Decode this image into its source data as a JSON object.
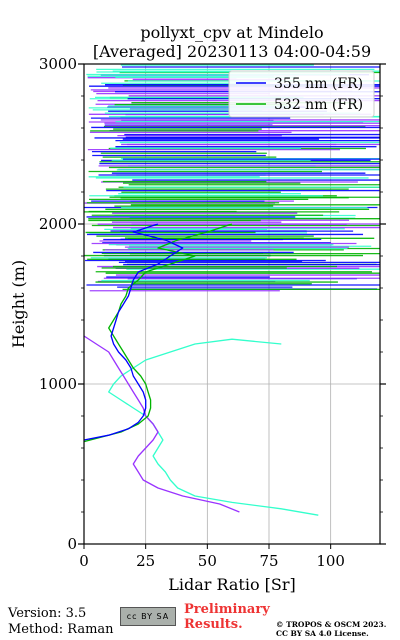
{
  "chart_data": {
    "type": "line",
    "title_line1": "pollyxt_cpv at Mindelo",
    "title_line2": "[Averaged] 20230113 04:00-04:59",
    "xlabel": "Lidar Ratio [Sr]",
    "ylabel": "Height (m)",
    "xlim": [
      0,
      120
    ],
    "ylim": [
      0,
      3000
    ],
    "xticks": [
      0,
      25,
      50,
      75,
      100
    ],
    "yticks": [
      0,
      1000,
      2000,
      3000
    ],
    "grid": true,
    "legend_position": "top-right",
    "series": [
      {
        "name": "355 nm (FR)",
        "color": "#0000ff",
        "points": [
          [
            0,
            650
          ],
          [
            10,
            680
          ],
          [
            18,
            720
          ],
          [
            22,
            760
          ],
          [
            24,
            800
          ],
          [
            25,
            850
          ],
          [
            25,
            900
          ],
          [
            24,
            950
          ],
          [
            22,
            1000
          ],
          [
            20,
            1050
          ],
          [
            19,
            1100
          ],
          [
            17,
            1150
          ],
          [
            14,
            1200
          ],
          [
            12,
            1250
          ],
          [
            11,
            1300
          ],
          [
            12,
            1350
          ],
          [
            13,
            1400
          ],
          [
            14,
            1450
          ],
          [
            16,
            1500
          ],
          [
            18,
            1550
          ],
          [
            19,
            1600
          ],
          [
            20,
            1650
          ],
          [
            22,
            1700
          ],
          [
            30,
            1750
          ],
          [
            35,
            1800
          ],
          [
            40,
            1850
          ],
          [
            33,
            1900
          ],
          [
            20,
            1950
          ],
          [
            30,
            2000
          ]
        ]
      },
      {
        "name": "532 nm (FR)",
        "color": "#00b400",
        "points": [
          [
            0,
            640
          ],
          [
            15,
            700
          ],
          [
            22,
            750
          ],
          [
            26,
            800
          ],
          [
            27,
            850
          ],
          [
            27,
            900
          ],
          [
            26,
            950
          ],
          [
            25,
            1000
          ],
          [
            23,
            1050
          ],
          [
            20,
            1100
          ],
          [
            18,
            1150
          ],
          [
            16,
            1200
          ],
          [
            14,
            1250
          ],
          [
            12,
            1300
          ],
          [
            10,
            1350
          ],
          [
            12,
            1400
          ],
          [
            14,
            1450
          ],
          [
            15,
            1500
          ],
          [
            17,
            1550
          ],
          [
            18,
            1600
          ],
          [
            22,
            1650
          ],
          [
            25,
            1700
          ],
          [
            35,
            1750
          ],
          [
            45,
            1800
          ],
          [
            30,
            1850
          ],
          [
            38,
            1900
          ],
          [
            50,
            1950
          ],
          [
            60,
            2000
          ]
        ]
      },
      {
        "name": "",
        "color": "#9933ff",
        "points": [
          [
            63,
            200
          ],
          [
            55,
            250
          ],
          [
            40,
            300
          ],
          [
            30,
            350
          ],
          [
            24,
            400
          ],
          [
            22,
            450
          ],
          [
            20,
            500
          ],
          [
            22,
            550
          ],
          [
            25,
            600
          ],
          [
            28,
            650
          ],
          [
            30,
            700
          ],
          [
            28,
            750
          ],
          [
            25,
            800
          ],
          [
            24,
            850
          ],
          [
            22,
            900
          ],
          [
            20,
            950
          ],
          [
            18,
            1000
          ],
          [
            16,
            1050
          ],
          [
            14,
            1100
          ],
          [
            12,
            1150
          ],
          [
            10,
            1200
          ],
          [
            5,
            1250
          ],
          [
            0,
            1300
          ]
        ]
      },
      {
        "name": "",
        "color": "#33ffcc",
        "points": [
          [
            95,
            180
          ],
          [
            80,
            220
          ],
          [
            60,
            260
          ],
          [
            45,
            300
          ],
          [
            38,
            350
          ],
          [
            35,
            400
          ],
          [
            33,
            450
          ],
          [
            30,
            500
          ],
          [
            28,
            550
          ],
          [
            30,
            600
          ],
          [
            32,
            650
          ],
          [
            30,
            700
          ],
          [
            28,
            750
          ],
          [
            25,
            800
          ],
          [
            20,
            850
          ],
          [
            15,
            900
          ],
          [
            10,
            950
          ],
          [
            12,
            1000
          ],
          [
            15,
            1050
          ],
          [
            20,
            1100
          ],
          [
            25,
            1150
          ],
          [
            35,
            1200
          ],
          [
            45,
            1250
          ],
          [
            60,
            1280
          ],
          [
            80,
            1250
          ]
        ]
      }
    ]
  },
  "footer": {
    "version": "Version: 3.5",
    "method": "Method: Raman",
    "license_badge": "cc BY SA",
    "preliminary_line1": "Preliminary",
    "preliminary_line2": "Results.",
    "copyright_line1": "© TROPOS & OSCM 2023.",
    "copyright_line2": "CC BY SA 4.0 License."
  }
}
